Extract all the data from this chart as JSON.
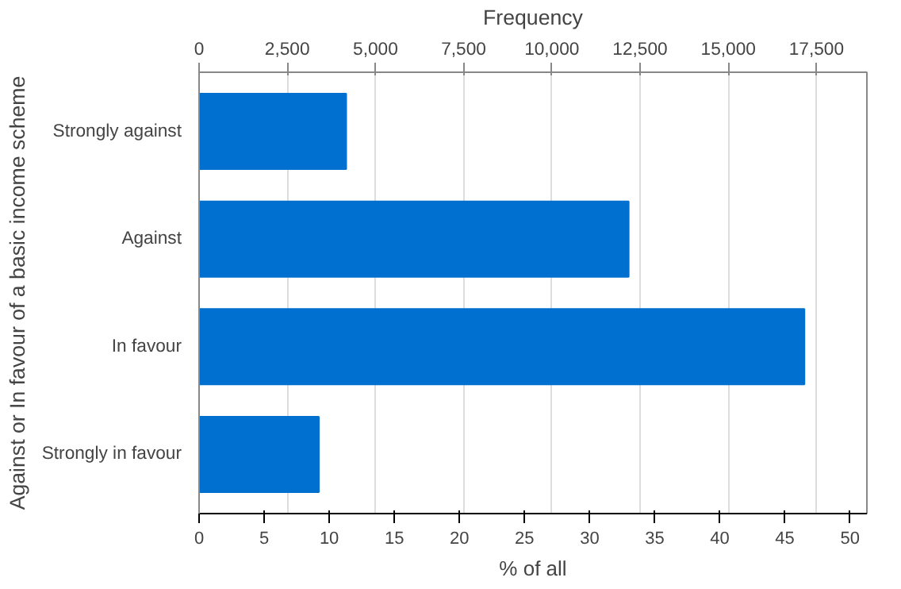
{
  "chart_data": {
    "type": "bar",
    "orientation": "horizontal",
    "categories": [
      "Strongly against",
      "Against",
      "In favour",
      "Strongly in favour"
    ],
    "values": [
      11.3,
      33.0,
      46.5,
      9.2
    ],
    "color": "#0070d0",
    "xlabel": "% of all",
    "ylabel": "Against or In favour of a basic income scheme",
    "x2label": "Frequency",
    "xlim": [
      0,
      51.3
    ],
    "xticks": [
      0,
      5,
      10,
      15,
      20,
      25,
      30,
      35,
      40,
      45,
      50
    ],
    "x2lim": [
      0,
      18930
    ],
    "x2ticks": [
      {
        "value": 0,
        "label": "0"
      },
      {
        "value": 2500,
        "label": "2,500"
      },
      {
        "value": 5000,
        "label": "5,000"
      },
      {
        "value": 7500,
        "label": "7,500"
      },
      {
        "value": 10000,
        "label": "10,000"
      },
      {
        "value": 12500,
        "label": "12,500"
      },
      {
        "value": 15000,
        "label": "15,000"
      },
      {
        "value": 17500,
        "label": "17,500"
      }
    ],
    "grid": "x2"
  }
}
